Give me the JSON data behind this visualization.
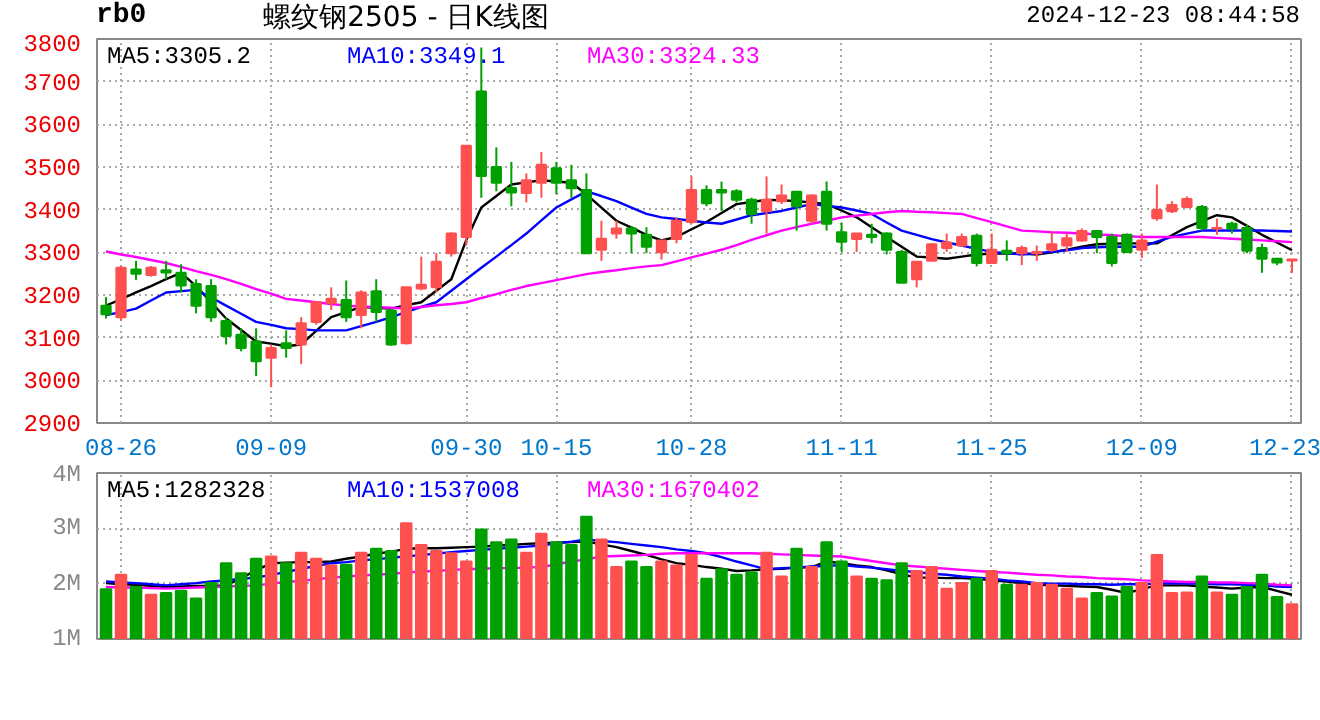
{
  "chart_data": [
    {
      "type": "candlestick",
      "title": "螺纹钢2505 - 日K线图",
      "annotations": [
        "rb0",
        "2024-12-23 08:44:58"
      ],
      "categories": [
        null,
        "08-26",
        null,
        null,
        null,
        null,
        null,
        null,
        null,
        null,
        null,
        "09-09",
        null,
        null,
        null,
        null,
        null,
        null,
        null,
        null,
        null,
        null,
        null,
        null,
        "09-30",
        null,
        null,
        null,
        null,
        null,
        "10-15",
        null,
        null,
        null,
        null,
        null,
        null,
        null,
        null,
        "10-28",
        null,
        null,
        null,
        null,
        null,
        null,
        null,
        null,
        null,
        "11-11",
        null,
        null,
        null,
        null,
        null,
        null,
        null,
        null,
        null,
        "11-25",
        null,
        null,
        null,
        null,
        null,
        null,
        null,
        null,
        null,
        "12-09",
        null,
        null,
        null,
        null,
        null,
        null,
        null,
        null,
        null,
        "12-23"
      ],
      "ohlc": [
        [
          3175,
          3195,
          3145,
          3155
        ],
        [
          3148,
          3268,
          3140,
          3264
        ],
        [
          3260,
          3280,
          3235,
          3250
        ],
        [
          3247,
          3268,
          3243,
          3264
        ],
        [
          3258,
          3280,
          3237,
          3253
        ],
        [
          3252,
          3272,
          3206,
          3222
        ],
        [
          3226,
          3237,
          3157,
          3175
        ],
        [
          3221,
          3237,
          3137,
          3148
        ],
        [
          3139,
          3148,
          3084,
          3104
        ],
        [
          3107,
          3122,
          3068,
          3076
        ],
        [
          3091,
          3122,
          3010,
          3045
        ],
        [
          3053,
          3084,
          2984,
          3076
        ],
        [
          3087,
          3117,
          3053,
          3076
        ],
        [
          3084,
          3148,
          3038,
          3134
        ],
        [
          3137,
          3183,
          3130,
          3183
        ],
        [
          3181,
          3218,
          3165,
          3191
        ],
        [
          3188,
          3234,
          3137,
          3148
        ],
        [
          3153,
          3211,
          3122,
          3206
        ],
        [
          3209,
          3237,
          3137,
          3160
        ],
        [
          3163,
          3168,
          3081,
          3084
        ],
        [
          3087,
          3218,
          3084,
          3218
        ],
        [
          3215,
          3290,
          3211,
          3224
        ],
        [
          3218,
          3298,
          3206,
          3278
        ],
        [
          3298,
          3347,
          3290,
          3344
        ],
        [
          3336,
          3550,
          3316,
          3550
        ],
        [
          3677,
          3780,
          3428,
          3479
        ],
        [
          3500,
          3546,
          3443,
          3463
        ],
        [
          3451,
          3512,
          3408,
          3440
        ],
        [
          3439,
          3485,
          3417,
          3469
        ],
        [
          3463,
          3535,
          3428,
          3505
        ],
        [
          3497,
          3512,
          3436,
          3463
        ],
        [
          3469,
          3505,
          3428,
          3450
        ],
        [
          3446,
          3485,
          3298,
          3298
        ],
        [
          3306,
          3374,
          3280,
          3332
        ],
        [
          3344,
          3374,
          3332,
          3356
        ],
        [
          3356,
          3362,
          3298,
          3344
        ],
        [
          3341,
          3359,
          3298,
          3313
        ],
        [
          3300,
          3328,
          3283,
          3328
        ],
        [
          3331,
          3382,
          3321,
          3374
        ],
        [
          3371,
          3478,
          3367,
          3446
        ],
        [
          3446,
          3457,
          3408,
          3415
        ],
        [
          3446,
          3466,
          3397,
          3440
        ],
        [
          3443,
          3448,
          3417,
          3423
        ],
        [
          3423,
          3428,
          3367,
          3390
        ],
        [
          3397,
          3478,
          3344,
          3423
        ],
        [
          3420,
          3459,
          3413,
          3433
        ],
        [
          3442,
          3442,
          3351,
          3408
        ],
        [
          3374,
          3436,
          3367,
          3433
        ],
        [
          3442,
          3466,
          3351,
          3367
        ],
        [
          3347,
          3370,
          3301,
          3325
        ],
        [
          3331,
          3344,
          3301,
          3344
        ],
        [
          3341,
          3367,
          3321,
          3336
        ],
        [
          3344,
          3347,
          3295,
          3306
        ],
        [
          3301,
          3306,
          3229,
          3229
        ],
        [
          3237,
          3278,
          3218,
          3278
        ],
        [
          3280,
          3321,
          3280,
          3319
        ],
        [
          3310,
          3344,
          3301,
          3323
        ],
        [
          3316,
          3344,
          3313,
          3336
        ],
        [
          3339,
          3344,
          3267,
          3275
        ],
        [
          3275,
          3344,
          3275,
          3306
        ],
        [
          3304,
          3328,
          3280,
          3298
        ],
        [
          3298,
          3316,
          3270,
          3310
        ],
        [
          3298,
          3316,
          3280,
          3301
        ],
        [
          3306,
          3350,
          3301,
          3319
        ],
        [
          3316,
          3344,
          3301,
          3333
        ],
        [
          3328,
          3356,
          3325,
          3350
        ],
        [
          3350,
          3350,
          3298,
          3336
        ],
        [
          3336,
          3344,
          3267,
          3275
        ],
        [
          3341,
          3344,
          3301,
          3301
        ],
        [
          3306,
          3344,
          3287,
          3328
        ],
        [
          3380,
          3459,
          3374,
          3399
        ],
        [
          3396,
          3420,
          3392,
          3411
        ],
        [
          3406,
          3431,
          3403,
          3425
        ],
        [
          3406,
          3411,
          3351,
          3357
        ],
        [
          3356,
          3379,
          3341,
          3357
        ],
        [
          3367,
          3372,
          3344,
          3356
        ],
        [
          3357,
          3364,
          3298,
          3304
        ],
        [
          3310,
          3320,
          3252,
          3285
        ],
        [
          3285,
          3287,
          3270,
          3276
        ],
        [
          3281,
          3283,
          3252,
          3283
        ]
      ],
      "colors": [
        "#00a000",
        "#ff5050",
        "#00a000",
        "#ff5050",
        "#00a000",
        "#00a000",
        "#00a000",
        "#00a000",
        "#00a000",
        "#00a000",
        "#00a000",
        "#ff5050",
        "#00a000",
        "#ff5050",
        "#ff5050",
        "#ff5050",
        "#00a000",
        "#ff5050",
        "#00a000",
        "#00a000",
        "#ff5050",
        "#ff5050",
        "#ff5050",
        "#ff5050",
        "#ff5050",
        "#00a000",
        "#00a000",
        "#00a000",
        "#ff5050",
        "#ff5050",
        "#00a000",
        "#00a000",
        "#00a000",
        "#ff5050",
        "#ff5050",
        "#00a000",
        "#00a000",
        "#ff5050",
        "#ff5050",
        "#ff5050",
        "#00a000",
        "#00a000",
        "#00a000",
        "#00a000",
        "#ff5050",
        "#ff5050",
        "#00a000",
        "#ff5050",
        "#00a000",
        "#00a000",
        "#ff5050",
        "#00a000",
        "#00a000",
        "#00a000",
        "#ff5050",
        "#ff5050",
        "#ff5050",
        "#ff5050",
        "#00a000",
        "#ff5050",
        "#00a000",
        "#ff5050",
        "#ff5050",
        "#ff5050",
        "#ff5050",
        "#ff5050",
        "#00a000",
        "#00a000",
        "#00a000",
        "#ff5050",
        "#ff5050",
        "#ff5050",
        "#ff5050",
        "#00a000",
        "#ff5050",
        "#00a000",
        "#00a000",
        "#00a000",
        "#00a000",
        "#ff5050"
      ],
      "series": [
        {
          "type": "line",
          "name": "MA5:3305.2",
          "color": "#000000",
          "values": [
            3175,
            3190,
            3206,
            3221,
            3237,
            3252,
            3221,
            3183,
            3145,
            3118,
            3091,
            3086,
            3080,
            3084,
            3116,
            3148,
            3160,
            3172,
            3170,
            3168,
            3176,
            3183,
            3210,
            3237,
            3329,
            3405,
            3432,
            3459,
            3464,
            3469,
            3466,
            3463,
            3436,
            3405,
            3374,
            3358,
            3341,
            3328,
            3336,
            3354,
            3371,
            3392,
            3413,
            3418,
            3423,
            3422,
            3420,
            3417,
            3413,
            3398,
            3382,
            3359,
            3336,
            3313,
            3290,
            3288,
            3285,
            3290,
            3295,
            3297,
            3298,
            3297,
            3295,
            3300,
            3306,
            3313,
            3319,
            3320,
            3321,
            3321,
            3321,
            3340,
            3359,
            3373,
            3387,
            3382,
            3362,
            3341,
            3323,
            3305
          ]
        },
        {
          "type": "line",
          "name": "MA10:3349.1",
          "color": "#0000ff",
          "values": [
            3153,
            3160,
            3168,
            3187,
            3206,
            3209,
            3212,
            3194,
            3175,
            3156,
            3137,
            3130,
            3122,
            3120,
            3117,
            3117,
            3117,
            3127,
            3137,
            3148,
            3160,
            3172,
            3183,
            3210,
            3237,
            3264,
            3290,
            3317,
            3344,
            3375,
            3405,
            3424,
            3443,
            3432,
            3420,
            3405,
            3390,
            3382,
            3378,
            3374,
            3370,
            3367,
            3377,
            3387,
            3392,
            3397,
            3405,
            3413,
            3409,
            3405,
            3398,
            3390,
            3370,
            3351,
            3341,
            3331,
            3323,
            3316,
            3308,
            3301,
            3298,
            3295,
            3298,
            3301,
            3305,
            3310,
            3312,
            3313,
            3313,
            3313,
            3325,
            3336,
            3344,
            3351,
            3351,
            3351,
            3351,
            3351,
            3350,
            3349
          ]
        },
        {
          "type": "line",
          "name": "MA30:3324.33",
          "color": "#ff00ff",
          "values": [
            3302,
            3295,
            3289,
            3282,
            3275,
            3266,
            3256,
            3247,
            3237,
            3226,
            3214,
            3203,
            3191,
            3187,
            3183,
            3179,
            3175,
            3173,
            3172,
            3170,
            3168,
            3172,
            3176,
            3179,
            3183,
            3193,
            3202,
            3212,
            3221,
            3228,
            3235,
            3242,
            3249,
            3254,
            3258,
            3263,
            3267,
            3270,
            3279,
            3288,
            3297,
            3306,
            3317,
            3329,
            3340,
            3351,
            3359,
            3367,
            3374,
            3382,
            3386,
            3390,
            3394,
            3397,
            3395,
            3394,
            3392,
            3390,
            3380,
            3371,
            3361,
            3351,
            3349,
            3347,
            3346,
            3344,
            3342,
            3340,
            3338,
            3336,
            3336,
            3336,
            3336,
            3336,
            3334,
            3332,
            3330,
            3328,
            3326,
            3324
          ]
        }
      ],
      "ylim": [
        2900,
        3800
      ],
      "yticks": [
        2900,
        3000,
        3100,
        3200,
        3300,
        3400,
        3500,
        3600,
        3700,
        3800
      ],
      "grid": true,
      "legend": "top"
    },
    {
      "type": "bar",
      "categories": [
        null,
        null,
        null,
        null,
        null,
        null,
        null,
        null,
        null,
        null,
        null,
        null,
        null,
        null,
        null,
        null,
        null,
        null,
        null,
        null,
        null,
        null,
        null,
        null,
        null,
        null,
        null,
        null,
        null,
        null,
        null,
        null,
        null,
        null,
        null,
        null,
        null,
        null,
        null,
        null,
        null,
        null,
        null,
        null,
        null,
        null,
        null,
        null,
        null,
        null,
        null,
        null,
        null,
        null,
        null,
        null,
        null,
        null,
        null,
        null,
        null,
        null,
        null,
        null,
        null,
        null,
        null,
        null,
        null,
        null,
        null,
        null,
        null,
        null,
        null,
        null,
        null,
        null,
        null,
        null
      ],
      "values": [
        1.9,
        2.16,
        1.94,
        1.8,
        1.83,
        1.87,
        1.73,
        2.01,
        2.37,
        2.19,
        2.45,
        2.49,
        2.37,
        2.56,
        2.45,
        2.33,
        2.34,
        2.56,
        2.63,
        2.59,
        3.09,
        2.7,
        2.59,
        2.55,
        2.4,
        2.98,
        2.75,
        2.8,
        2.56,
        2.9,
        2.75,
        2.7,
        3.21,
        2.8,
        2.3,
        2.4,
        2.3,
        2.4,
        2.33,
        2.52,
        2.09,
        2.26,
        2.16,
        2.2,
        2.56,
        2.13,
        2.63,
        2.3,
        2.75,
        2.4,
        2.13,
        2.09,
        2.06,
        2.37,
        2.23,
        2.3,
        1.91,
        2.01,
        2.09,
        2.23,
        1.98,
        1.98,
        2.01,
        1.98,
        1.91,
        1.73,
        1.83,
        1.77,
        1.94,
        2.01,
        2.52,
        1.83,
        1.84,
        2.13,
        1.84,
        1.8,
        1.94,
        2.16,
        1.76,
        1.63
      ],
      "colors": [
        "#00a000",
        "#ff5050",
        "#00a000",
        "#ff5050",
        "#00a000",
        "#00a000",
        "#00a000",
        "#00a000",
        "#00a000",
        "#00a000",
        "#00a000",
        "#ff5050",
        "#00a000",
        "#ff5050",
        "#ff5050",
        "#ff5050",
        "#00a000",
        "#ff5050",
        "#00a000",
        "#00a000",
        "#ff5050",
        "#ff5050",
        "#ff5050",
        "#ff5050",
        "#ff5050",
        "#00a000",
        "#00a000",
        "#00a000",
        "#ff5050",
        "#ff5050",
        "#00a000",
        "#00a000",
        "#00a000",
        "#ff5050",
        "#ff5050",
        "#00a000",
        "#00a000",
        "#ff5050",
        "#ff5050",
        "#ff5050",
        "#00a000",
        "#00a000",
        "#00a000",
        "#00a000",
        "#ff5050",
        "#ff5050",
        "#00a000",
        "#ff5050",
        "#00a000",
        "#00a000",
        "#ff5050",
        "#00a000",
        "#00a000",
        "#00a000",
        "#ff5050",
        "#ff5050",
        "#ff5050",
        "#ff5050",
        "#00a000",
        "#ff5050",
        "#00a000",
        "#ff5050",
        "#ff5050",
        "#ff5050",
        "#ff5050",
        "#ff5050",
        "#00a000",
        "#00a000",
        "#00a000",
        "#ff5050",
        "#ff5050",
        "#ff5050",
        "#ff5050",
        "#00a000",
        "#ff5050",
        "#00a000",
        "#00a000",
        "#00a000",
        "#00a000",
        "#ff5050"
      ],
      "series": [
        {
          "type": "line",
          "name": "MA5:1282328",
          "color": "#000000",
          "values": [
            2.01,
            1.99,
            1.98,
            1.96,
            1.94,
            1.95,
            1.96,
            1.96,
            1.97,
            2.1,
            2.24,
            2.37,
            2.38,
            2.39,
            2.39,
            2.4,
            2.45,
            2.49,
            2.54,
            2.58,
            2.63,
            2.64,
            2.64,
            2.65,
            2.66,
            2.67,
            2.69,
            2.7,
            2.72,
            2.73,
            2.74,
            2.75,
            2.76,
            2.71,
            2.66,
            2.59,
            2.52,
            2.44,
            2.37,
            2.34,
            2.3,
            2.27,
            2.23,
            2.24,
            2.26,
            2.27,
            2.29,
            2.3,
            2.4,
            2.37,
            2.33,
            2.3,
            2.24,
            2.17,
            2.11,
            2.11,
            2.1,
            2.1,
            2.09,
            2.06,
            2.04,
            2.01,
            1.98,
            1.97,
            1.96,
            1.95,
            1.94,
            1.89,
            1.83,
            1.9,
            1.97,
            1.97,
            1.97,
            1.95,
            1.93,
            1.91,
            1.93,
            1.94,
            1.87,
            1.8
          ]
        },
        {
          "type": "line",
          "name": "MA10:1537008",
          "color": "#0000ff",
          "values": [
            2.04,
            2.02,
            2.01,
            1.99,
            1.97,
            1.99,
            2.01,
            2.04,
            2.06,
            2.09,
            2.11,
            2.16,
            2.21,
            2.27,
            2.32,
            2.37,
            2.39,
            2.42,
            2.44,
            2.47,
            2.49,
            2.52,
            2.54,
            2.57,
            2.59,
            2.61,
            2.63,
            2.65,
            2.67,
            2.69,
            2.73,
            2.76,
            2.8,
            2.77,
            2.75,
            2.72,
            2.69,
            2.66,
            2.62,
            2.59,
            2.55,
            2.48,
            2.4,
            2.33,
            2.26,
            2.28,
            2.29,
            2.31,
            2.32,
            2.34,
            2.31,
            2.29,
            2.26,
            2.23,
            2.21,
            2.18,
            2.16,
            2.13,
            2.11,
            2.09,
            2.06,
            2.04,
            2.01,
            2.0,
            2.0,
            1.99,
            1.99,
            1.98,
            1.99,
            1.99,
            2.0,
            2.01,
            2.0,
            2.0,
            1.99,
            1.99,
            1.98,
            1.97,
            1.95,
            1.94
          ]
        },
        {
          "type": "line",
          "name": "MA30:1670402",
          "color": "#ff00ff",
          "values": [
            1.94,
            1.93,
            1.93,
            1.92,
            1.91,
            1.92,
            1.93,
            1.94,
            1.95,
            1.96,
            1.97,
            2.0,
            2.03,
            2.05,
            2.08,
            2.11,
            2.13,
            2.15,
            2.16,
            2.18,
            2.2,
            2.22,
            2.23,
            2.25,
            2.26,
            2.27,
            2.28,
            2.28,
            2.29,
            2.3,
            2.35,
            2.4,
            2.44,
            2.49,
            2.5,
            2.51,
            2.52,
            2.54,
            2.55,
            2.55,
            2.55,
            2.55,
            2.55,
            2.55,
            2.54,
            2.53,
            2.52,
            2.51,
            2.5,
            2.49,
            2.45,
            2.41,
            2.37,
            2.33,
            2.31,
            2.29,
            2.27,
            2.25,
            2.23,
            2.21,
            2.2,
            2.18,
            2.16,
            2.15,
            2.13,
            2.12,
            2.1,
            2.09,
            2.08,
            2.06,
            2.05,
            2.04,
            2.03,
            2.03,
            2.02,
            2.02,
            2.01,
            2.0,
            1.98,
            1.97
          ]
        }
      ],
      "ylim": [
        1,
        4
      ],
      "yticks": [
        {
          "value": 1,
          "label": "1M"
        },
        {
          "value": 2,
          "label": "2M"
        },
        {
          "value": 3,
          "label": "3M"
        },
        {
          "value": 4,
          "label": "4M"
        }
      ],
      "tick_labels": "y",
      "grid": true,
      "legend": "top"
    }
  ]
}
